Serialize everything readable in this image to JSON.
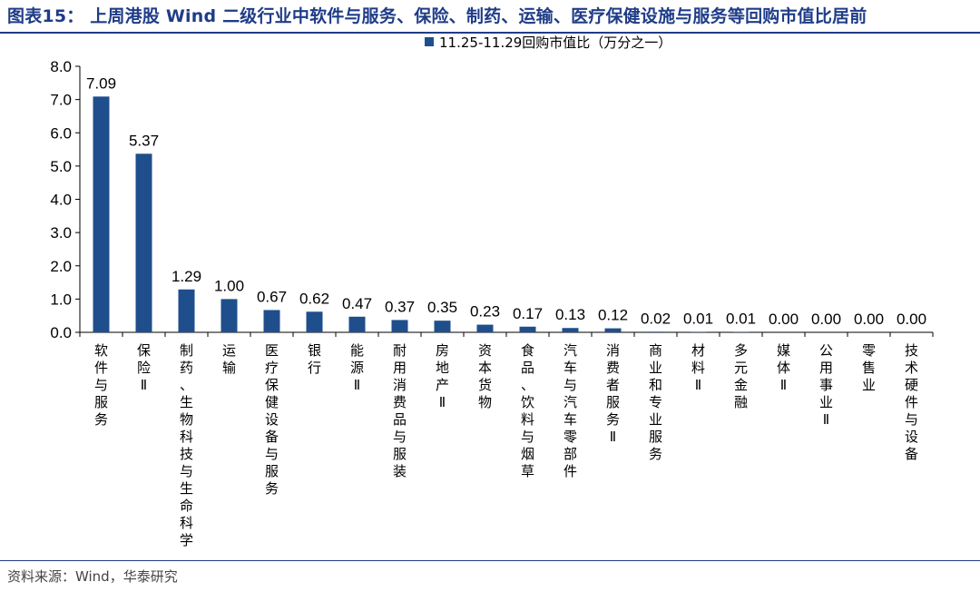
{
  "title": "图表15： 上周港股 Wind 二级行业中软件与服务、保险、制药、运输、医疗保健设施与服务等回购市值比居前",
  "source": "资料来源：Wind，华泰研究",
  "colors": {
    "bar": "#1f4e8c",
    "accent": "#1f3c88",
    "axis": "#000000"
  },
  "chart_data": {
    "type": "bar",
    "title": "图表15： 上周港股 Wind 二级行业中软件与服务、保险、制药、运输、医疗保健设施与服务等回购市值比居前",
    "xlabel": "",
    "ylabel": "",
    "ylim": [
      0,
      8
    ],
    "yticks": [
      "0.0",
      "1.0",
      "2.0",
      "3.0",
      "4.0",
      "5.0",
      "6.0",
      "7.0",
      "8.0"
    ],
    "legend": "11.25-11.29回购市值比（万分之一）",
    "legend_position": "top-center",
    "categories": [
      "软件与服务",
      "保险Ⅱ",
      "制药、生物科技与生命科学",
      "运输",
      "医疗保健设备与服务",
      "银行",
      "能源Ⅱ",
      "耐用消费品与服装",
      "房地产Ⅱ",
      "资本货物",
      "食品、饮料与烟草",
      "汽车与汽车零部件",
      "消费者服务Ⅱ",
      "商业和专业服务",
      "材料Ⅱ",
      "多元金融",
      "媒体Ⅱ",
      "公用事业Ⅱ",
      "零售业",
      "技术硬件与设备"
    ],
    "values": [
      7.09,
      5.37,
      1.29,
      1.0,
      0.67,
      0.62,
      0.47,
      0.37,
      0.35,
      0.23,
      0.17,
      0.13,
      0.12,
      0.02,
      0.01,
      0.01,
      0.0,
      0.0,
      0.0,
      0.0
    ],
    "labels": [
      "7.09",
      "5.37",
      "1.29",
      "1.00",
      "0.67",
      "0.62",
      "0.47",
      "0.37",
      "0.35",
      "0.23",
      "0.17",
      "0.13",
      "0.12",
      "0.02",
      "0.01",
      "0.01",
      "0.00",
      "0.00",
      "0.00",
      "0.00"
    ]
  }
}
